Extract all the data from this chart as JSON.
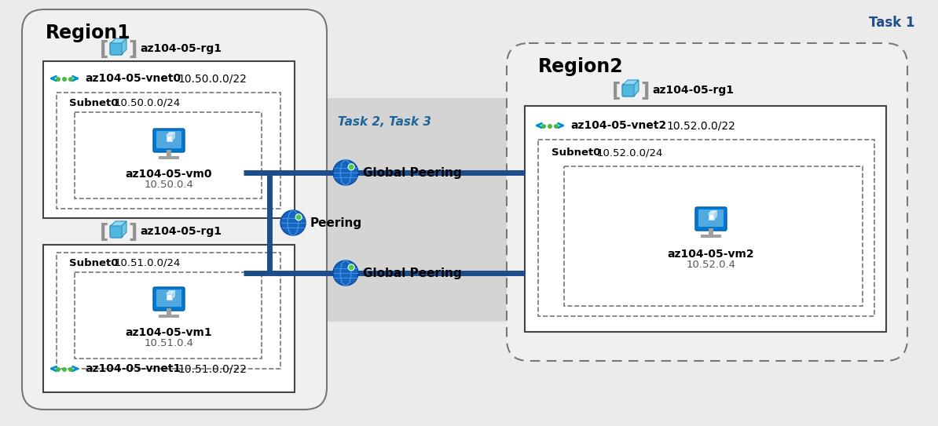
{
  "bg_color": "#ebebeb",
  "white": "#ffffff",
  "task1_label": "Task 1",
  "task1_color": "#1e4d8c",
  "task23_label": "Task 2, Task 3",
  "task23_color": "#1e6699",
  "region1_label": "Region1",
  "region2_label": "Region2",
  "rg1_label": "az104-05-rg1",
  "vnet0_label": "az104-05-vnet0",
  "vnet0_ip": "10.50.0.0/22",
  "subnet0_label": "Subnet0  10.50.0.0/24",
  "vm0_label": "az104-05-vm0",
  "vm0_ip": "10.50.0.4",
  "rg2_label": "az104-05-rg1",
  "vnet1_label": "az104-05-vnet1",
  "vnet1_ip": "10.51.0.0/22",
  "subnet1_label": "Subnet0  10.51.0.0/24",
  "vm1_label": "az104-05-vm1",
  "vm1_ip": "10.51.0.4",
  "rg3_label": "az104-05-rg1",
  "vnet2_label": "az104-05-vnet2",
  "vnet2_ip": "10.52.0.0/22",
  "subnet2_label": "Subnet0  10.52.0.0/24",
  "vm2_label": "az104-05-vm2",
  "vm2_ip": "10.52.0.4",
  "peering_label": "Peering",
  "global_peering_label": "Global Peering",
  "line_color": "#1e4d8c",
  "line_width": 5.0
}
